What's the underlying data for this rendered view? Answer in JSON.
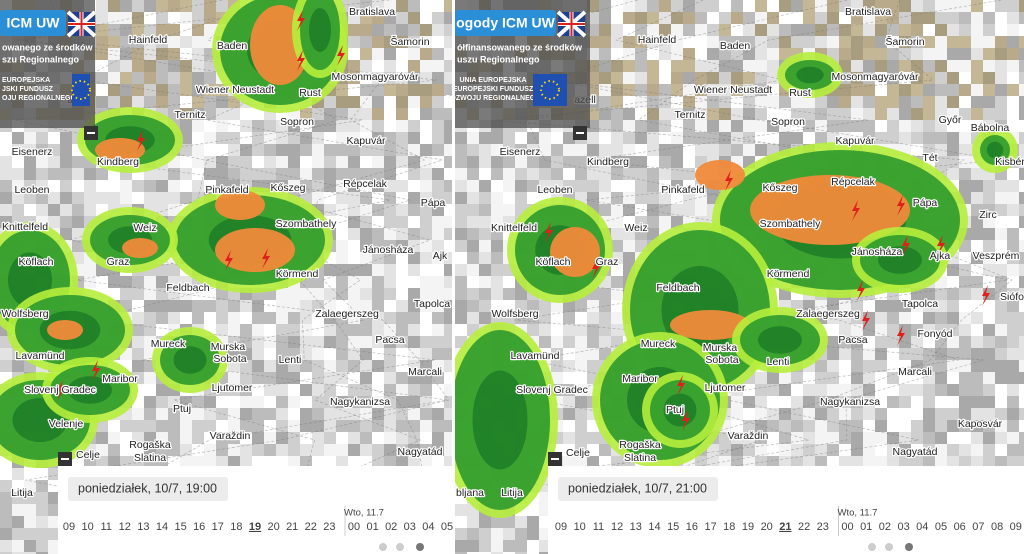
{
  "panels": [
    {
      "brand": "ICM UW",
      "funding": [
        "owanego ze środków",
        "szu Regionalnego"
      ],
      "eu": [
        "EUROPEJSKA",
        "JSKI FUNDUSZ",
        "OJU REGIONALNEGO"
      ],
      "places": [
        "Bratislava",
        "Hainfeld",
        "Baden",
        "Šamorin",
        "Mosonmagyaróvár",
        "Wiener Neustadt",
        "Rust",
        "azell",
        "Ternitz",
        "Sopron",
        "Eisenerz",
        "Kindberg",
        "Kapuvár",
        "Leoben",
        "Pinkafeld",
        "Kőszeg",
        "Répcelak",
        "Pápa",
        "Knittelfeld",
        "Weiz",
        "Szombathely",
        "Jánosháza",
        "Ajk",
        "Köflach",
        "Graz",
        "Körmend",
        "Feldbach",
        "Tapolca",
        "Wolfsberg",
        "Zalaegerszeg",
        "Mureck",
        "Murska",
        "Sobota",
        "Pacsa",
        "Lavamünd",
        "Lenti",
        "Marcali",
        "Maribor",
        "Slovenj Gradec",
        "Ljutomer",
        "Nagykanizsa",
        "Ptuj",
        "Velenje",
        "Varaždin",
        "Rogaška",
        "Slatina",
        "Celje",
        "Nagyatád",
        "Litija"
      ],
      "timebar": {
        "date": "poniedziałek, 10/7, 19:00",
        "next_day": "Wto, 11.7",
        "hours": [
          "09",
          "10",
          "11",
          "12",
          "13",
          "14",
          "15",
          "16",
          "17",
          "18",
          "19",
          "20",
          "21",
          "22",
          "23",
          "00",
          "01",
          "02",
          "03",
          "04",
          "05"
        ],
        "selected_index": 10
      }
    },
    {
      "brand": "ogody ICM UW",
      "funding": [
        "ółfinansowanego ze środków",
        "uszu Regionalnego"
      ],
      "eu": [
        "UNIA EUROPEJSKA",
        "EUROPEJSKI FUNDUSZ",
        "ROZWOJU REGIONALNEGO"
      ],
      "places": [
        "Bratislava",
        "Hainfeld",
        "Baden",
        "Šamorin",
        "Mosonmagyaróvár",
        "Wiener Neustadt",
        "Rust",
        "azell",
        "Ternitz",
        "Sopron",
        "Győr",
        "Kapuvár",
        "Bábolna",
        "Eisenerz",
        "Kindberg",
        "Tét",
        "Kisbér",
        "Leoben",
        "Pinkafeld",
        "Kőszeg",
        "Répcelak",
        "Pápa",
        "Zirc",
        "Knittelfeld",
        "Weiz",
        "Szombathely",
        "Jánosháza",
        "Ajka",
        "Veszprém",
        "Köflach",
        "Graz",
        "Körmend",
        "Feldbach",
        "Tapolca",
        "Siófo",
        "Wolfsberg",
        "Zalaegerszeg",
        "Fonyód",
        "Mureck",
        "Murska",
        "Sobota",
        "Pacsa",
        "Lavamünd",
        "Lenti",
        "Marcali",
        "Maribor",
        "Slovenj Gradec",
        "Ljutomer",
        "Nagykanizsa",
        "Kaposvár",
        "Ptuj",
        "Varaždin",
        "Rogaška",
        "Slatina",
        "Celje",
        "Nagyatád",
        "Litija",
        "bljana"
      ],
      "timebar": {
        "date": "poniedziałek, 10/7, 21:00",
        "next_day": "Wto, 11.7",
        "hours": [
          "09",
          "10",
          "11",
          "12",
          "13",
          "14",
          "15",
          "16",
          "17",
          "18",
          "19",
          "20",
          "21",
          "22",
          "23",
          "00",
          "01",
          "02",
          "03",
          "04",
          "05",
          "06",
          "07",
          "08",
          "09"
        ],
        "selected_index": 12
      }
    }
  ]
}
